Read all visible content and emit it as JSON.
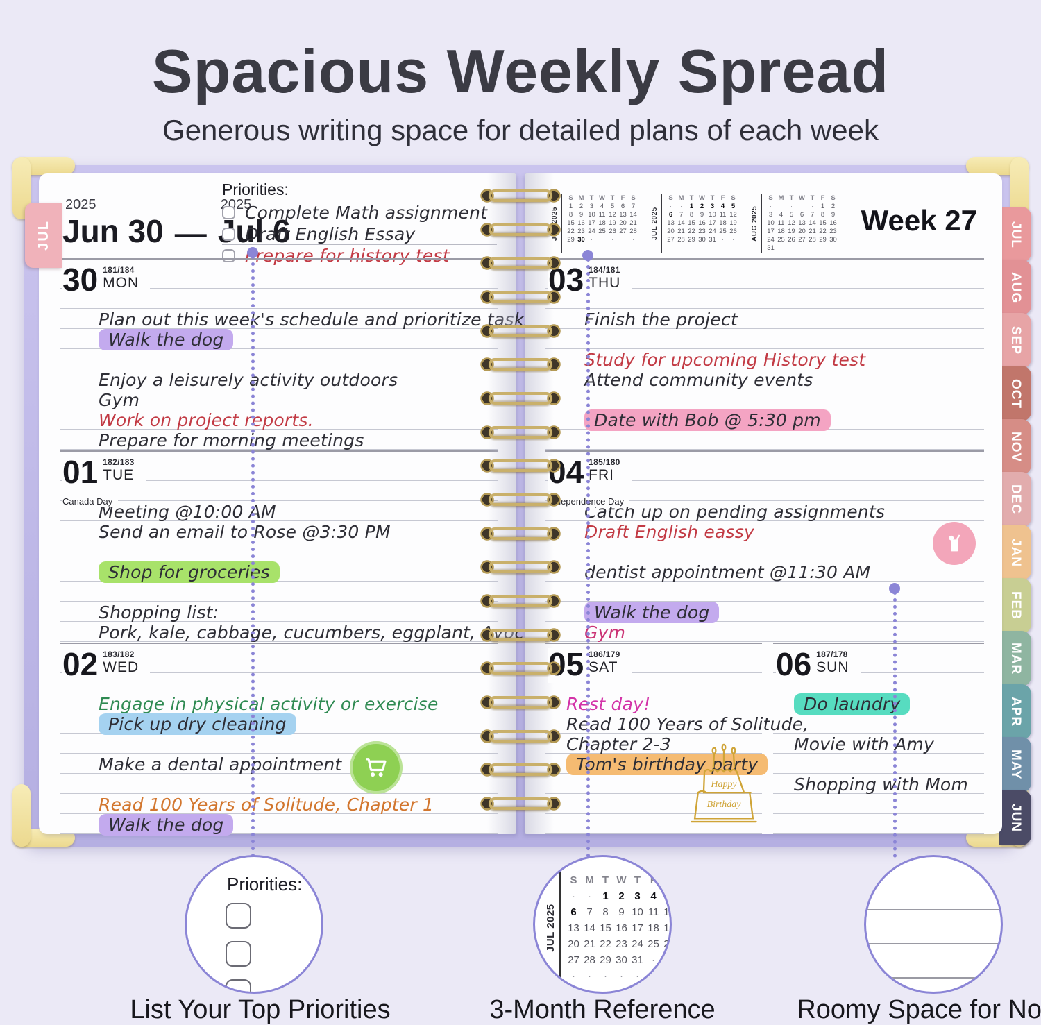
{
  "header": {
    "title": "Spacious Weekly Spread",
    "subtitle": "Generous writing space for detailed plans of each week"
  },
  "colors": {
    "accent": "#8b85d6",
    "rule": "#c6c8d2",
    "ink": "#2e2e36",
    "red": "#c23a44",
    "green": "#2f8a52",
    "orange": "#d2762e",
    "magenta": "#d333a8",
    "pink": "#cb3374",
    "hl_purple": "#c3aaee",
    "hl_green": "#a8e26a",
    "hl_blue": "#a5d2f0",
    "hl_pink": "#f4a4c3",
    "hl_orange": "#f5bb72",
    "hl_teal": "#57dcc0",
    "tab_text": "#ffffff",
    "gold": "#cfa437"
  },
  "book": {
    "left_page": {
      "side_tab": "JUL",
      "start_year": "2025",
      "start_date": "Jun 30",
      "dash": "—",
      "end_year": "2025",
      "end_date": "Jul 6",
      "priorities": {
        "label": "Priorities:",
        "items": [
          {
            "text": "Complete Math assignment",
            "color": "ink"
          },
          {
            "text": "Draft English Essay",
            "color": "ink"
          },
          {
            "text": "Prepare for history test",
            "color": "red"
          }
        ]
      },
      "days": [
        {
          "num": "30",
          "ordinal": "181/184",
          "abbrev": "MON",
          "holiday": "",
          "entries": [
            {
              "row": 0,
              "text": "Plan out this week's schedule and prioritize tasks",
              "color": "ink"
            },
            {
              "row": 1,
              "text": "Walk the dog",
              "color": "ink",
              "highlight": "purple"
            },
            {
              "row": 3,
              "text": "Enjoy a leisurely activity outdoors",
              "color": "ink"
            },
            {
              "row": 4,
              "text": "Gym",
              "color": "ink"
            },
            {
              "row": 5,
              "text": "Work on project reports.",
              "color": "red"
            },
            {
              "row": 6,
              "text": "Prepare for morning meetings",
              "color": "ink"
            }
          ]
        },
        {
          "num": "01",
          "ordinal": "182/183",
          "abbrev": "TUE",
          "holiday": "Canada Day",
          "entries": [
            {
              "row": 0,
              "text": "Meeting @10:00 AM",
              "color": "ink"
            },
            {
              "row": 1,
              "text": "Send an email to Rose @3:30 PM",
              "color": "ink"
            },
            {
              "row": 3,
              "text": "Shop for groceries",
              "color": "ink",
              "highlight": "green"
            },
            {
              "row": 5,
              "text": "Shopping list:",
              "color": "ink"
            },
            {
              "row": 6,
              "text": "Pork, kale, cabbage, cucumbers, eggplant, Avocado",
              "color": "ink"
            }
          ]
        },
        {
          "num": "02",
          "ordinal": "183/182",
          "abbrev": "WED",
          "holiday": "",
          "entries": [
            {
              "row": 0,
              "text": "Engage in physical activity or exercise",
              "color": "green"
            },
            {
              "row": 1,
              "text": "Pick up dry cleaning",
              "color": "ink",
              "highlight": "blue"
            },
            {
              "row": 3,
              "text": "Make a dental appointment",
              "color": "ink"
            },
            {
              "row": 5,
              "text": "Read 100 Years of Solitude, Chapter 1",
              "color": "orange"
            },
            {
              "row": 6,
              "text": "Walk the dog",
              "color": "ink",
              "highlight": "purple"
            }
          ]
        }
      ]
    },
    "right_page": {
      "week_label": "Week 27",
      "days": [
        {
          "num": "03",
          "ordinal": "184/181",
          "abbrev": "THU",
          "holiday": "",
          "entries": [
            {
              "row": 0,
              "text": "Finish the project",
              "color": "ink"
            },
            {
              "row": 2,
              "text": "Study for upcoming History test",
              "color": "red"
            },
            {
              "row": 3,
              "text": "Attend community events",
              "color": "ink"
            },
            {
              "row": 5,
              "text": "Date with Bob @ 5:30 pm",
              "color": "ink",
              "highlight": "pink"
            }
          ]
        },
        {
          "num": "04",
          "ordinal": "185/180",
          "abbrev": "FRI",
          "holiday": "Independence Day",
          "entries": [
            {
              "row": 0,
              "text": "Catch up on pending assignments",
              "color": "ink"
            },
            {
              "row": 1,
              "text": "Draft English eassy",
              "color": "red"
            },
            {
              "row": 3,
              "text": "dentist appointment @11:30 AM",
              "color": "ink"
            },
            {
              "row": 5,
              "text": "Walk the dog",
              "color": "ink",
              "highlight": "purple"
            },
            {
              "row": 6,
              "text": "Gym",
              "color": "pink"
            }
          ]
        }
      ],
      "weekend": [
        {
          "num": "05",
          "ordinal": "186/179",
          "abbrev": "SAT",
          "holiday": "",
          "entries": [
            {
              "row": 0,
              "text": "Rest day!",
              "color": "magenta"
            },
            {
              "row": 1,
              "text": "Read 100 Years of Solitude,",
              "color": "ink"
            },
            {
              "row": 2,
              "text": "Chapter 2-3",
              "color": "ink"
            },
            {
              "row": 3,
              "text": "Tom's birthday party",
              "color": "ink",
              "highlight": "orange"
            }
          ]
        },
        {
          "num": "06",
          "ordinal": "187/178",
          "abbrev": "SUN",
          "holiday": "",
          "entries": [
            {
              "row": 0,
              "text": "Do laundry",
              "color": "ink",
              "highlight": "teal"
            },
            {
              "row": 2,
              "text": "Movie with Amy",
              "color": "ink"
            },
            {
              "row": 4,
              "text": "Shopping with Mom",
              "color": "ink"
            }
          ]
        }
      ]
    }
  },
  "calendars": {
    "jun": {
      "label": "JUN 2025",
      "header": [
        "S",
        "M",
        "T",
        "W",
        "T",
        "F",
        "S"
      ],
      "bold": [
        "30"
      ],
      "rows": [
        [
          "1",
          "2",
          "3",
          "4",
          "5",
          "6",
          "7"
        ],
        [
          "8",
          "9",
          "10",
          "11",
          "12",
          "13",
          "14"
        ],
        [
          "15",
          "16",
          "17",
          "18",
          "19",
          "20",
          "21"
        ],
        [
          "22",
          "23",
          "24",
          "25",
          "26",
          "27",
          "28"
        ],
        [
          "29",
          "30",
          "·",
          "·",
          "·",
          "·",
          "·"
        ],
        [
          "·",
          "·",
          "·",
          "·",
          "·",
          "·",
          "·"
        ]
      ]
    },
    "jul": {
      "label": "JUL 2025",
      "header": [
        "S",
        "M",
        "T",
        "W",
        "T",
        "F",
        "S"
      ],
      "bold": [
        "1",
        "2",
        "3",
        "4",
        "5",
        "6"
      ],
      "rows": [
        [
          "·",
          "·",
          "1",
          "2",
          "3",
          "4",
          "5"
        ],
        [
          "6",
          "7",
          "8",
          "9",
          "10",
          "11",
          "12"
        ],
        [
          "13",
          "14",
          "15",
          "16",
          "17",
          "18",
          "19"
        ],
        [
          "20",
          "21",
          "22",
          "23",
          "24",
          "25",
          "26"
        ],
        [
          "27",
          "28",
          "29",
          "30",
          "31",
          "·",
          "·"
        ],
        [
          "·",
          "·",
          "·",
          "·",
          "·",
          "·",
          "·"
        ]
      ]
    },
    "aug": {
      "label": "AUG 2025",
      "header": [
        "S",
        "M",
        "T",
        "W",
        "T",
        "F",
        "S"
      ],
      "bold": [],
      "rows": [
        [
          "·",
          "·",
          "·",
          "·",
          "·",
          "1",
          "2"
        ],
        [
          "3",
          "4",
          "5",
          "6",
          "7",
          "8",
          "9"
        ],
        [
          "10",
          "11",
          "12",
          "13",
          "14",
          "15",
          "16"
        ],
        [
          "17",
          "18",
          "19",
          "20",
          "21",
          "22",
          "23"
        ],
        [
          "24",
          "25",
          "26",
          "27",
          "28",
          "29",
          "30"
        ],
        [
          "31",
          "·",
          "·",
          "·",
          "·",
          "·",
          "·"
        ]
      ]
    }
  },
  "tabs": [
    {
      "label": "JUL",
      "color": "#e9999c"
    },
    {
      "label": "AUG",
      "color": "#e29195"
    },
    {
      "label": "SEP",
      "color": "#e7a4a6"
    },
    {
      "label": "OCT",
      "color": "#c1766b"
    },
    {
      "label": "NOV",
      "color": "#d68d86"
    },
    {
      "label": "DEC",
      "color": "#e2acad"
    },
    {
      "label": "JAN",
      "color": "#efc28f"
    },
    {
      "label": "FEB",
      "color": "#c8ce93"
    },
    {
      "label": "MAR",
      "color": "#8fb5a1"
    },
    {
      "label": "APR",
      "color": "#6ba4a9"
    },
    {
      "label": "MAY",
      "color": "#7090a9"
    },
    {
      "label": "JUN",
      "color": "#4b4b66"
    }
  ],
  "callouts": [
    {
      "label": "List Your Top Priorities",
      "circle_label": "Priorities:"
    },
    {
      "label": "3-Month Reference"
    },
    {
      "label": "Roomy Space for Notes"
    }
  ],
  "doodles": {
    "birthday_line1": "Happy",
    "birthday_line2": "Birthday"
  }
}
